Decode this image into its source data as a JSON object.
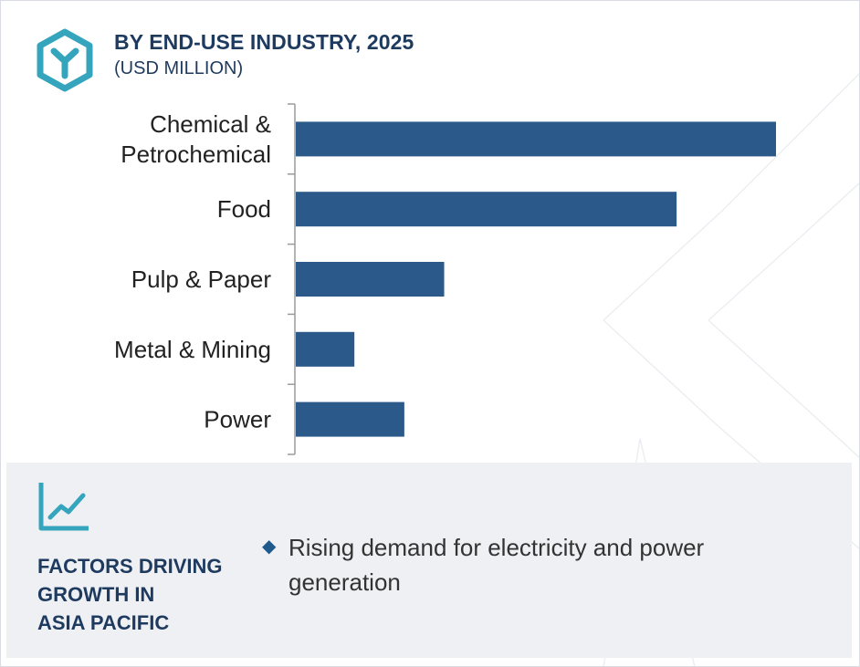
{
  "header": {
    "title": "BY END-USE INDUSTRY, 2025",
    "subtitle": "(USD MILLION)"
  },
  "colors": {
    "bar": "#2b5a8a",
    "accent": "#35a5bd",
    "title": "#1e3a5f",
    "panel": "#eef0f4"
  },
  "icons": {
    "header": "hexagon-y-logo-icon",
    "factors": "line-chart-trend-icon",
    "bullet": "diamond-bullet-icon"
  },
  "chart_data": {
    "type": "bar",
    "orientation": "horizontal",
    "title": "BY END-USE INDUSTRY, 2025",
    "subtitle": "(USD MILLION)",
    "categories": [
      [
        "Chemical &",
        "Petrochemical"
      ],
      [
        "Food"
      ],
      [
        "Pulp & Paper"
      ],
      [
        "Metal & Mining"
      ],
      [
        "Power"
      ]
    ],
    "values": [
      100,
      79.3,
      30.9,
      12.2,
      22.6
    ],
    "xlim": [
      0,
      100
    ],
    "grid": false,
    "legend": "none"
  },
  "factors": {
    "title": "FACTORS DRIVING\nGROWTH IN\nASIA PACIFIC",
    "bullets": [
      "Rising demand for electricity and power generation"
    ]
  }
}
